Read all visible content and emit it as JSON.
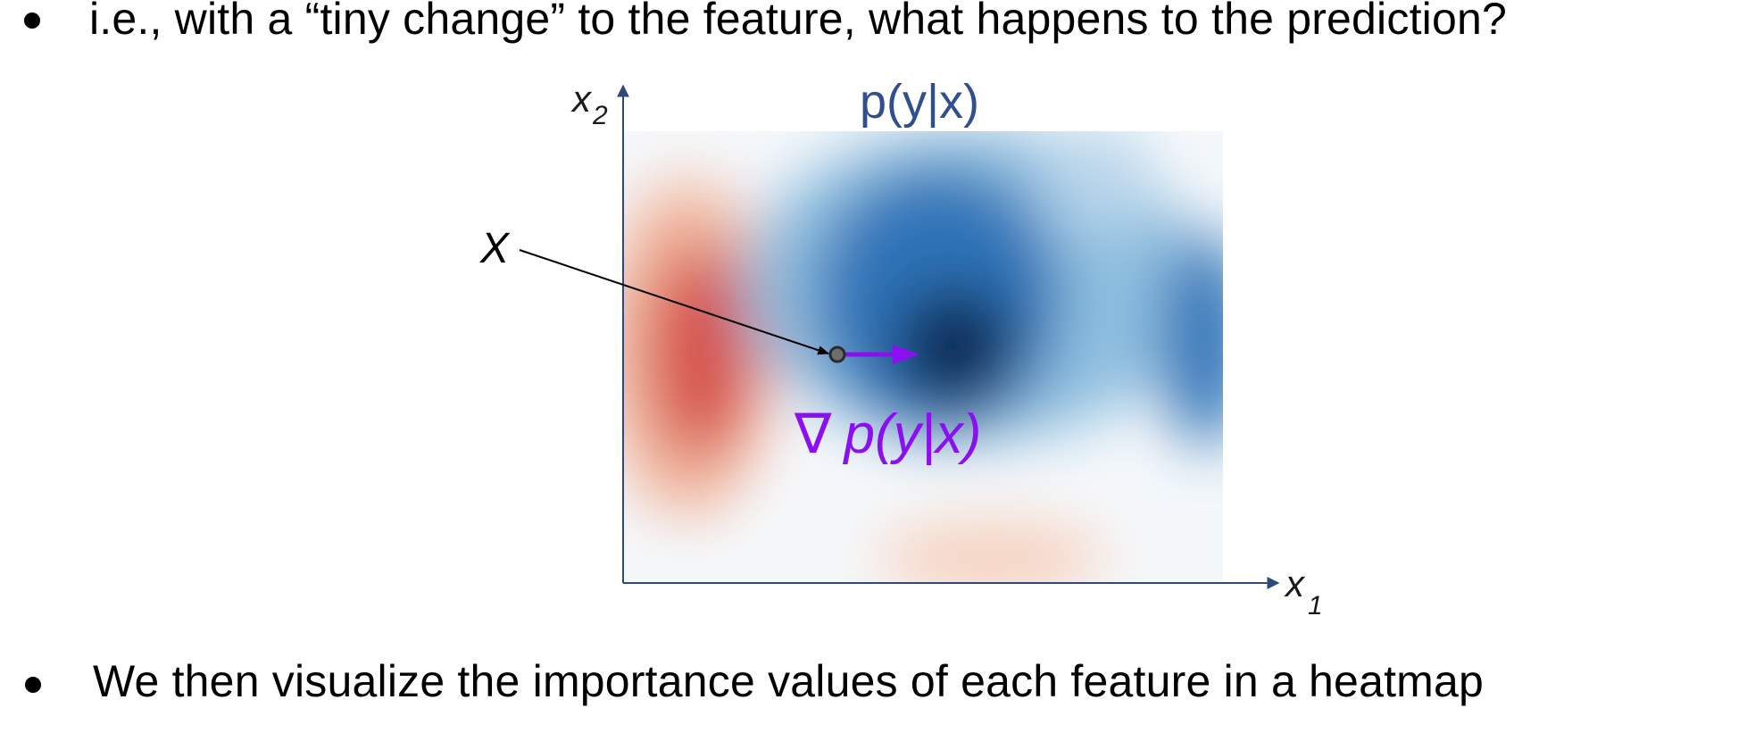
{
  "bullets": [
    {
      "text": "i.e., with a “tiny change” to the feature, what happens to the prediction?"
    },
    {
      "text": "We then visualize the importance values of each feature in a heatmap"
    }
  ],
  "diagram": {
    "heatmap_title": "p(y|x)",
    "x_axis_label_base": "x",
    "x_axis_label_sub": "1",
    "y_axis_label_base": "x",
    "y_axis_label_sub": "2",
    "point_label": "X",
    "gradient_symbol": "∇",
    "gradient_label": "p(y|x)",
    "colors": {
      "axis": "#2f4a7a",
      "title": "#2f4f8f",
      "gradient": "#8a10f0",
      "red": "#d6504a",
      "blue_dark": "#0b2a55",
      "blue": "#2f73b8",
      "point": "#6e6e6e"
    }
  }
}
